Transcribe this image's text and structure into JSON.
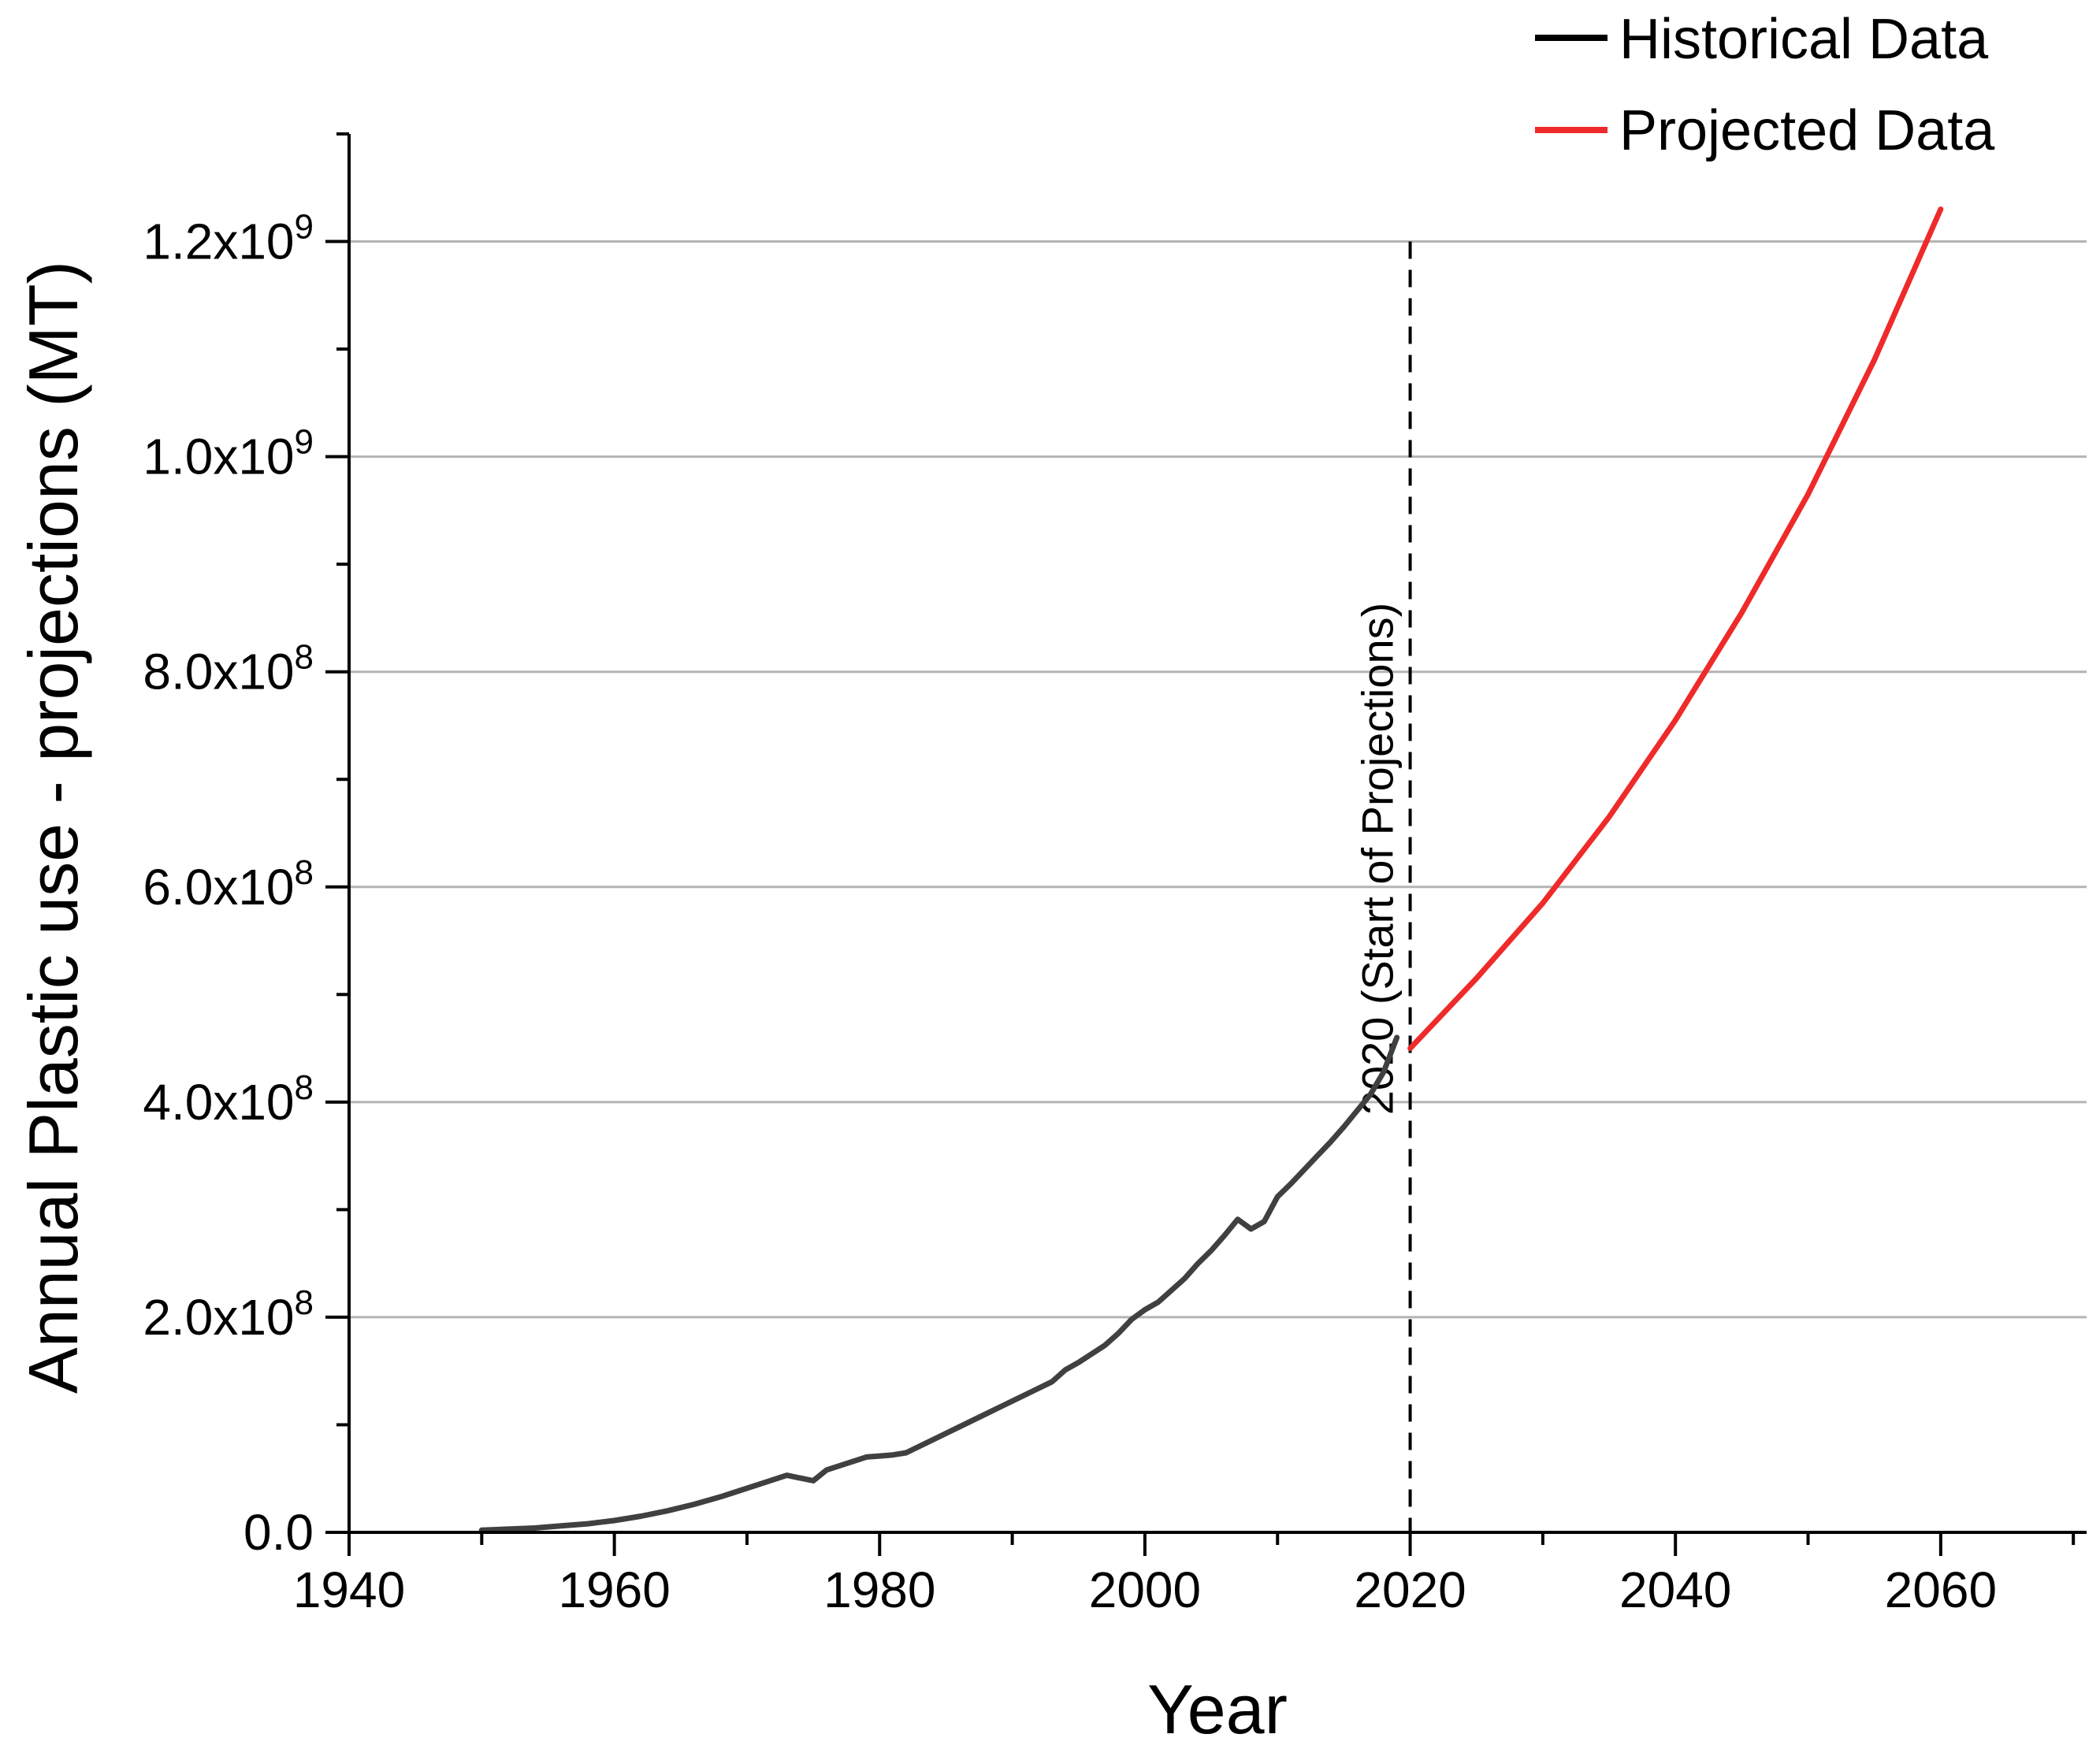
{
  "chart_data": {
    "type": "line",
    "title": "",
    "xlabel": "Year",
    "ylabel": "Annual Plastic use - projections (MT)",
    "xlim": [
      1940,
      2071
    ],
    "ylim": [
      0,
      1300000000
    ],
    "grid": "horizontal",
    "legend_position": "top-right",
    "x_ticks": [
      {
        "value": 1940,
        "label": "1940"
      },
      {
        "value": 1960,
        "label": "1960"
      },
      {
        "value": 1980,
        "label": "1980"
      },
      {
        "value": 2000,
        "label": "2000"
      },
      {
        "value": 2020,
        "label": "2020"
      },
      {
        "value": 2040,
        "label": "2040"
      },
      {
        "value": 2060,
        "label": "2060"
      }
    ],
    "y_ticks": [
      {
        "value": 0,
        "mantissa": "0.0",
        "times": "",
        "exponent": ""
      },
      {
        "value": 200000000,
        "mantissa": "2.0",
        "times": "x10",
        "exponent": "8"
      },
      {
        "value": 400000000,
        "mantissa": "4.0",
        "times": "x10",
        "exponent": "8"
      },
      {
        "value": 600000000,
        "mantissa": "6.0",
        "times": "x10",
        "exponent": "8"
      },
      {
        "value": 800000000,
        "mantissa": "8.0",
        "times": "x10",
        "exponent": "8"
      },
      {
        "value": 1000000000,
        "mantissa": "1.0",
        "times": "x10",
        "exponent": "9"
      },
      {
        "value": 1200000000,
        "mantissa": "1.2",
        "times": "x10",
        "exponent": "9"
      }
    ],
    "series": [
      {
        "name": "Historical Data",
        "color": "#404040",
        "x": [
          1950,
          1952,
          1954,
          1956,
          1958,
          1960,
          1962,
          1964,
          1966,
          1968,
          1969,
          1971,
          1973,
          1975,
          1976,
          1978,
          1979,
          1980,
          1981,
          1982,
          1984,
          1986,
          1988,
          1990,
          1992,
          1993,
          1994,
          1995,
          1997,
          1998,
          1999,
          2000,
          2001,
          2003,
          2004,
          2005,
          2006,
          2007,
          2008,
          2009,
          2010,
          2011,
          2012,
          2013,
          2014,
          2015,
          2016,
          2017,
          2018,
          2019
        ],
        "values": [
          2000000,
          3000000,
          4000000,
          6000000,
          8000000,
          11000000,
          15000000,
          20000000,
          26000000,
          33000000,
          37000000,
          45000000,
          53000000,
          48000000,
          58000000,
          66000000,
          70000000,
          71000000,
          72000000,
          74000000,
          86000000,
          98000000,
          110000000,
          122000000,
          134000000,
          140000000,
          151000000,
          158000000,
          174000000,
          185000000,
          198000000,
          207000000,
          214000000,
          236000000,
          250000000,
          262000000,
          276000000,
          291000000,
          282000000,
          289000000,
          312000000,
          324000000,
          337000000,
          350000000,
          363000000,
          377000000,
          392000000,
          407000000,
          428000000,
          460000000
        ]
      },
      {
        "name": "Projected Data",
        "color": "#ee2a2a",
        "x": [
          2020,
          2025,
          2030,
          2035,
          2040,
          2045,
          2050,
          2055,
          2060
        ],
        "values": [
          450000000,
          515000000,
          585000000,
          665000000,
          755000000,
          855000000,
          965000000,
          1090000000,
          1230000000
        ]
      }
    ],
    "annotations": [
      {
        "type": "vline",
        "x": 2020,
        "style": "dashed",
        "label": "2020 (Start of Projections)"
      }
    ]
  }
}
